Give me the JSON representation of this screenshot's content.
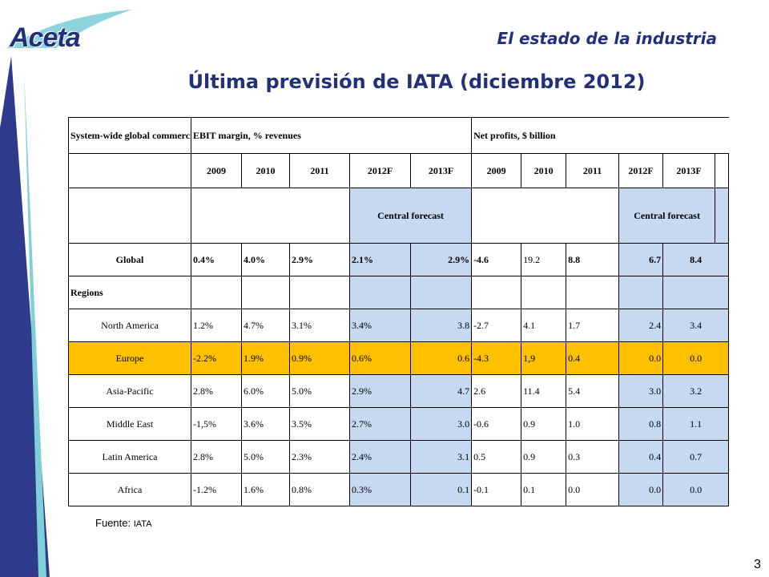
{
  "header": {
    "logo_text": "Aceta",
    "section_title": "El estado de la industria",
    "main_title": "Última previsión de IATA (diciembre 2012)"
  },
  "table": {
    "header_left": "System-wide global commercial airlines",
    "header_ebit": "EBIT margin, % revenues",
    "header_profit": "Net profits, $ billion",
    "years": [
      "2009",
      "2010",
      "2011",
      "2012F",
      "2013F",
      "2009",
      "2010",
      "2011",
      "2012F",
      "2013F"
    ],
    "central_forecast": [
      "Central forecast",
      "Central forecast"
    ],
    "global": {
      "label": "Global",
      "values": [
        "0.4%",
        "4.0%",
        "2.9%",
        "2.1%",
        "2.9%",
        "-4.6",
        "19.2",
        "8.8",
        "6.7",
        "8.4"
      ]
    },
    "regions_label": "Regions",
    "rows": [
      {
        "label": "North America",
        "values": [
          "1.2%",
          "4.7%",
          "3.1%",
          "3.4%",
          "3.8",
          "-2.7",
          "4.1",
          "1.7",
          "2.4",
          "3.4"
        ]
      },
      {
        "label": "Europe",
        "values": [
          "-2.2%",
          "1.9%",
          "0.9%",
          "0.6%",
          "0.6",
          "-4.3",
          "1,9",
          "0.4",
          "0.0",
          "0.0"
        ]
      },
      {
        "label": "Asia-Pacific",
        "values": [
          "2.8%",
          "6.0%",
          "5.0%",
          "2.9%",
          "4.7",
          "2.6",
          "11.4",
          "5.4",
          "3.0",
          "3.2"
        ]
      },
      {
        "label": "Middle East",
        "values": [
          "-1,5%",
          "3.6%",
          "3.5%",
          "2.7%",
          "3.0",
          "-0.6",
          "0.9",
          "1.0",
          "0.8",
          "1.1"
        ]
      },
      {
        "label": "Latin America",
        "values": [
          "2.8%",
          "5.0%",
          "2.3%",
          "2.4%",
          "3.1",
          "0.5",
          "0.9",
          "0.3",
          "0.4",
          "0.7"
        ]
      },
      {
        "label": "Africa",
        "values": [
          "-1.2%",
          "1.6%",
          "0.8%",
          "0.3%",
          "0.1",
          "-0.1",
          "0.1",
          "0.0",
          "0.0",
          "0.0"
        ]
      }
    ]
  },
  "footer": {
    "source_label": "Fuente:",
    "source_value": "IATA",
    "slide_number": "3"
  },
  "colors": {
    "title_blue": "#22307a",
    "forecast_blue": "#c6d9f1",
    "highlight_yellow": "#ffc000"
  }
}
